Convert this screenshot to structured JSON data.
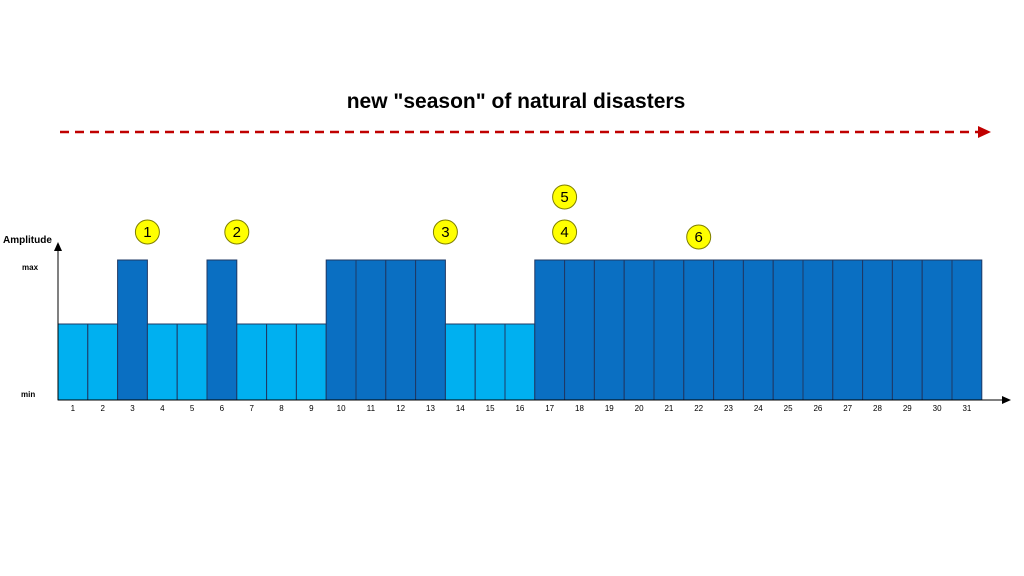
{
  "title": "new \"season\" of natural disasters",
  "colors": {
    "high": "#0a6fc2",
    "low": "#00b0f0",
    "bar_stroke": "#1f3864",
    "arrow": "#c00000",
    "marker_fill": "#ffff00",
    "marker_stroke": "#7f7f00"
  },
  "chart_data": {
    "type": "bar",
    "ylabel": "Amplitude",
    "y_levels": [
      "min",
      "max"
    ],
    "categories": [
      "1",
      "2",
      "3",
      "4",
      "5",
      "6",
      "7",
      "8",
      "9",
      "10",
      "11",
      "12",
      "13",
      "14",
      "15",
      "16",
      "17",
      "18",
      "19",
      "20",
      "21",
      "22",
      "23",
      "24",
      "25",
      "26",
      "27",
      "28",
      "29",
      "30",
      "31"
    ],
    "values": [
      "mid",
      "mid",
      "max",
      "mid",
      "mid",
      "max",
      "mid",
      "mid",
      "mid",
      "max",
      "max",
      "max",
      "max",
      "mid",
      "mid",
      "mid",
      "max",
      "max",
      "max",
      "max",
      "max",
      "max",
      "max",
      "max",
      "max",
      "max",
      "max",
      "max",
      "max",
      "max",
      "max"
    ],
    "annotations": [
      {
        "label": "1",
        "after_category": "3"
      },
      {
        "label": "2",
        "after_category": "6"
      },
      {
        "label": "3",
        "after_category": "13"
      },
      {
        "label": "4",
        "after_category": "17"
      },
      {
        "label": "5",
        "after_category": "17"
      },
      {
        "label": "6",
        "at_category": "22"
      }
    ]
  }
}
